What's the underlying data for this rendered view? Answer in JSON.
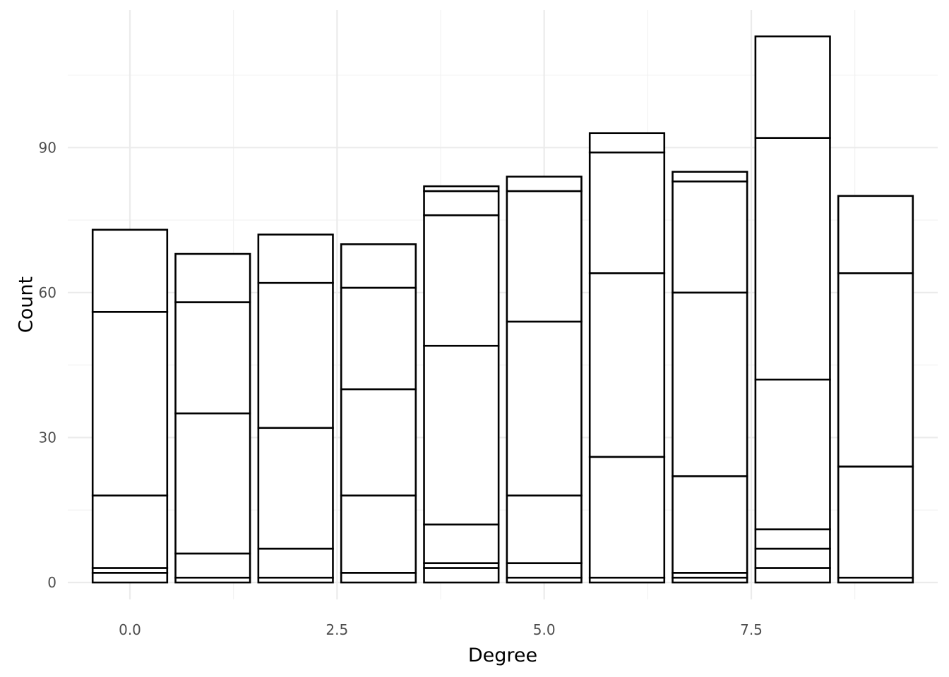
{
  "chart_data": {
    "type": "bar",
    "stacked": true,
    "xlabel": "Degree",
    "ylabel": "Count",
    "x": [
      0,
      1,
      2,
      3,
      4,
      5,
      6,
      7,
      8,
      9
    ],
    "xlim": [
      -0.75,
      9.75
    ],
    "ylim": [
      -3.5,
      118.5
    ],
    "x_ticks": [
      0.0,
      2.5,
      5.0,
      7.5
    ],
    "x_tick_labels": [
      "0.0",
      "2.5",
      "5.0",
      "7.5"
    ],
    "x_minor_ticks": [
      1.25,
      3.75,
      6.25,
      8.75
    ],
    "y_ticks": [
      0,
      30,
      60,
      90
    ],
    "y_tick_labels": [
      "0",
      "30",
      "60",
      "90"
    ],
    "y_minor_ticks": [
      15,
      45,
      75,
      105
    ],
    "bar_width": 0.9,
    "bar_fill": "#ffffff",
    "bar_outline": "#000000",
    "grid": true,
    "legend": "none",
    "stack_boundaries": [
      [
        2,
        3,
        18,
        56,
        73
      ],
      [
        1,
        6,
        35,
        58,
        68
      ],
      [
        1,
        7,
        32,
        62,
        72
      ],
      [
        2,
        18,
        40,
        61,
        70
      ],
      [
        3,
        4,
        12,
        49,
        76,
        81,
        82
      ],
      [
        1,
        4,
        18,
        54,
        81,
        84
      ],
      [
        1,
        26,
        64,
        89,
        93
      ],
      [
        1,
        2,
        22,
        60,
        83,
        85
      ],
      [
        3,
        7,
        11,
        42,
        92,
        113
      ],
      [
        1,
        24,
        64,
        80
      ]
    ],
    "totals": [
      73,
      68,
      72,
      70,
      82,
      84,
      93,
      85,
      113,
      80
    ]
  }
}
